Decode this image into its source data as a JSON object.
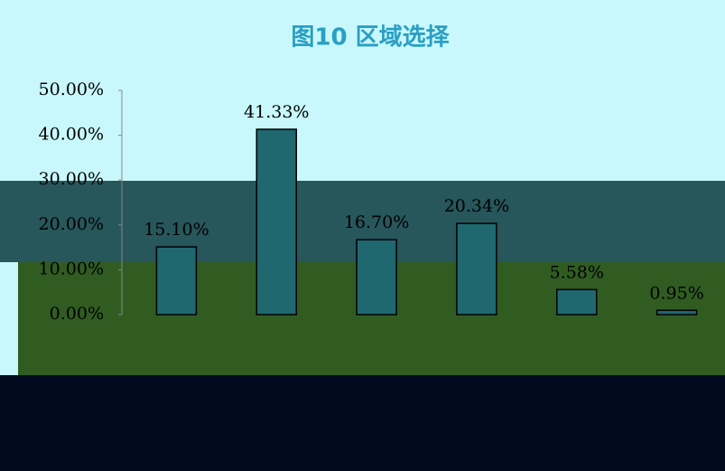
{
  "chart_data": {
    "type": "bar",
    "title": "图10 区域选择",
    "categories": [
      null,
      null,
      null,
      null,
      null,
      null
    ],
    "values": [
      15.1,
      41.33,
      16.7,
      20.34,
      5.58,
      0.95
    ],
    "value_labels": [
      "15.10%",
      "41.33%",
      "16.70%",
      "20.34%",
      "5.58%",
      "0.95%"
    ],
    "color": "#1f6870",
    "ylim": [
      0,
      50
    ],
    "yticks": [
      {
        "value": 0,
        "label": "0.00%"
      },
      {
        "value": 10,
        "label": "10.00%"
      },
      {
        "value": 20,
        "label": "20.00%"
      },
      {
        "value": 30,
        "label": "30.00%"
      },
      {
        "value": 40,
        "label": "40.00%"
      },
      {
        "value": 50,
        "label": "50.00%"
      }
    ]
  }
}
